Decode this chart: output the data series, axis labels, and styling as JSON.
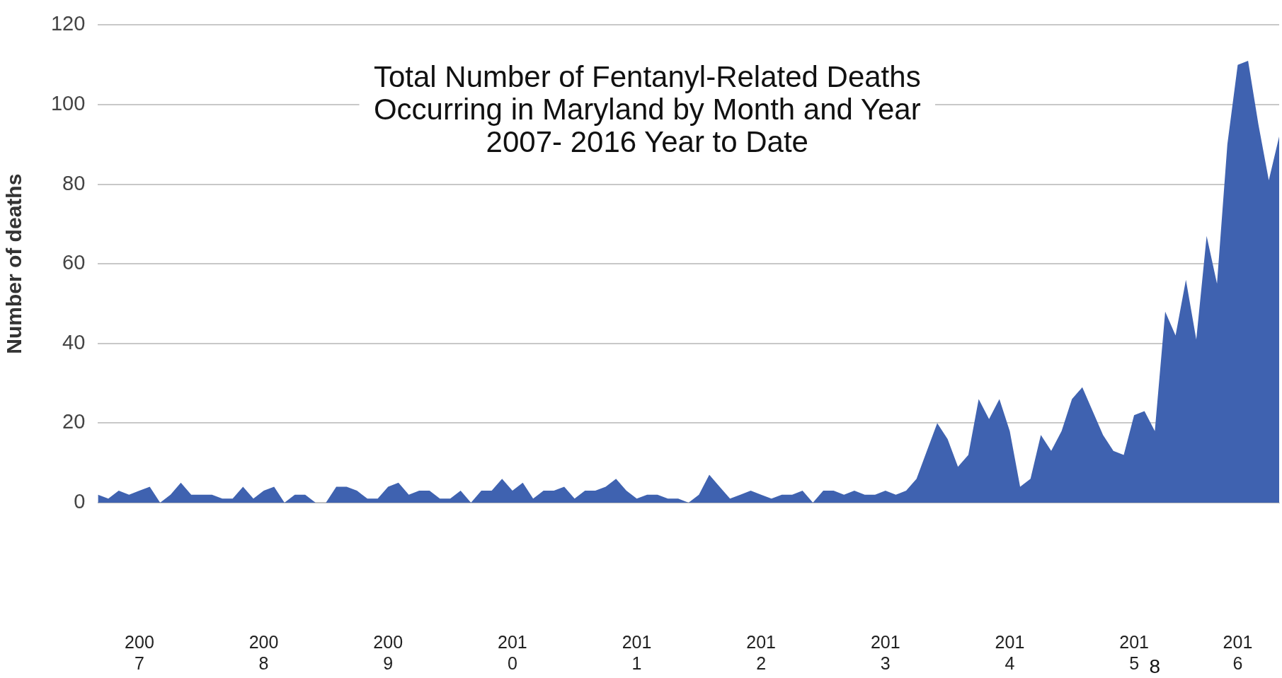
{
  "chart_data": {
    "type": "area",
    "title": "Total Number of Fentanyl-Related Deaths\nOccurring in Maryland by Month and Year\n2007- 2016 Year to Date",
    "ylabel": "Number of deaths",
    "categories": [
      null,
      null,
      null,
      null,
      "2007",
      null,
      null,
      null,
      null,
      null,
      null,
      null,
      null,
      null,
      null,
      null,
      "2008",
      null,
      null,
      null,
      null,
      null,
      null,
      null,
      null,
      null,
      null,
      null,
      "2009",
      null,
      null,
      null,
      null,
      null,
      null,
      null,
      null,
      null,
      null,
      null,
      "2010",
      null,
      null,
      null,
      null,
      null,
      null,
      null,
      null,
      null,
      null,
      null,
      "2011",
      null,
      null,
      null,
      null,
      null,
      null,
      null,
      null,
      null,
      null,
      null,
      "2012",
      null,
      null,
      null,
      null,
      null,
      null,
      null,
      null,
      null,
      null,
      null,
      "2013",
      null,
      null,
      null,
      null,
      null,
      null,
      null,
      null,
      null,
      null,
      null,
      "2014",
      null,
      null,
      null,
      null,
      null,
      null,
      null,
      null,
      null,
      null,
      null,
      "2015",
      null,
      null,
      null,
      null,
      null,
      null,
      null,
      null,
      null,
      "2016",
      null,
      null,
      null,
      null
    ],
    "series": [
      {
        "color": "#3f62b0",
        "values": [
          2,
          1,
          3,
          2,
          3,
          4,
          0,
          2,
          5,
          2,
          2,
          2,
          1,
          1,
          4,
          1,
          3,
          4,
          0,
          2,
          2,
          0,
          0,
          4,
          4,
          3,
          1,
          1,
          4,
          5,
          2,
          3,
          3,
          1,
          1,
          3,
          0,
          3,
          3,
          6,
          3,
          5,
          1,
          3,
          3,
          4,
          1,
          3,
          3,
          4,
          6,
          3,
          1,
          2,
          2,
          1,
          1,
          0,
          2,
          7,
          4,
          1,
          2,
          3,
          2,
          1,
          2,
          2,
          3,
          0,
          3,
          3,
          2,
          3,
          2,
          2,
          3,
          2,
          3,
          6,
          13,
          20,
          16,
          9,
          12,
          26,
          21,
          26,
          18,
          4,
          6,
          17,
          13,
          18,
          26,
          29,
          23,
          17,
          13,
          12,
          22,
          23,
          18,
          48,
          42,
          56,
          41,
          67,
          55,
          90,
          110,
          111,
          95,
          81,
          92
        ]
      }
    ],
    "ylim": [
      0,
      120
    ],
    "yticks": [
      0,
      20,
      40,
      60,
      80,
      100,
      120
    ],
    "grid": "y",
    "annotations": [
      "8"
    ]
  }
}
